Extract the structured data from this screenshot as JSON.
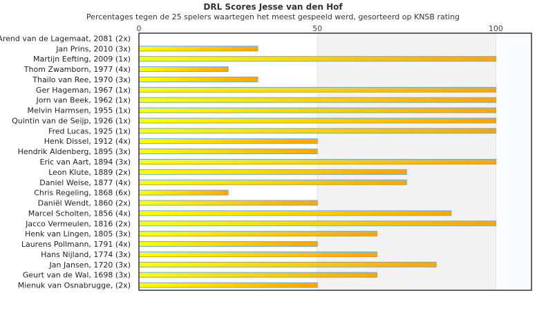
{
  "chart_data": {
    "type": "bar",
    "orientation": "horizontal",
    "title": "DRL Scores Jesse van den Hof",
    "subtitle": "Percentages tegen de 25 spelers waartegen het meest gespeeld werd, gesorteerd op KNSB rating",
    "xlim": [
      0,
      110
    ],
    "xticks": [
      "0",
      "50",
      "100"
    ],
    "categories": [
      "Arend van de Lagemaat, 2081 (2x)",
      "Jan Prins, 2010 (3x)",
      "Martijn Eefting, 2009 (1x)",
      "Thom Zwamborn, 1977 (4x)",
      "Thailo van Ree, 1970 (3x)",
      "Ger Hageman, 1967 (1x)",
      "Jorn van Beek, 1962 (1x)",
      "Melvin Harmsen, 1955 (1x)",
      "Quintin van de Seijp, 1926 (1x)",
      "Fred Lucas, 1925 (1x)",
      "Henk Dissel, 1912 (4x)",
      "Hendrik Aldenberg, 1895 (3x)",
      "Eric van Aart, 1894 (3x)",
      "Leon Klute, 1889 (2x)",
      "Daniel Weise, 1877 (4x)",
      "Chris Regeling, 1868 (6x)",
      "Daniël Wendt, 1860 (2x)",
      "Marcel Scholten, 1856 (4x)",
      "Jacco Vermeulen, 1816 (2x)",
      "Henk van Lingen, 1805 (3x)",
      "Laurens Pollmann, 1791 (4x)",
      "Hans Nijland, 1774 (3x)",
      "Jan Jansen, 1720 (3x)",
      "Geurt van de Wal, 1698 (3x)",
      "Mienuk van Osnabrugge,  (2x)"
    ],
    "values": [
      0,
      33.3,
      100,
      25,
      33.3,
      100,
      100,
      100,
      100,
      100,
      50,
      50,
      100,
      75,
      75,
      25,
      50,
      87.5,
      100,
      66.7,
      50,
      66.7,
      83.3,
      66.7,
      50
    ],
    "colors": {
      "bar_start": "#ffff00",
      "bar_end": "#ffa500",
      "bar_border": "#6aa8e8"
    }
  }
}
